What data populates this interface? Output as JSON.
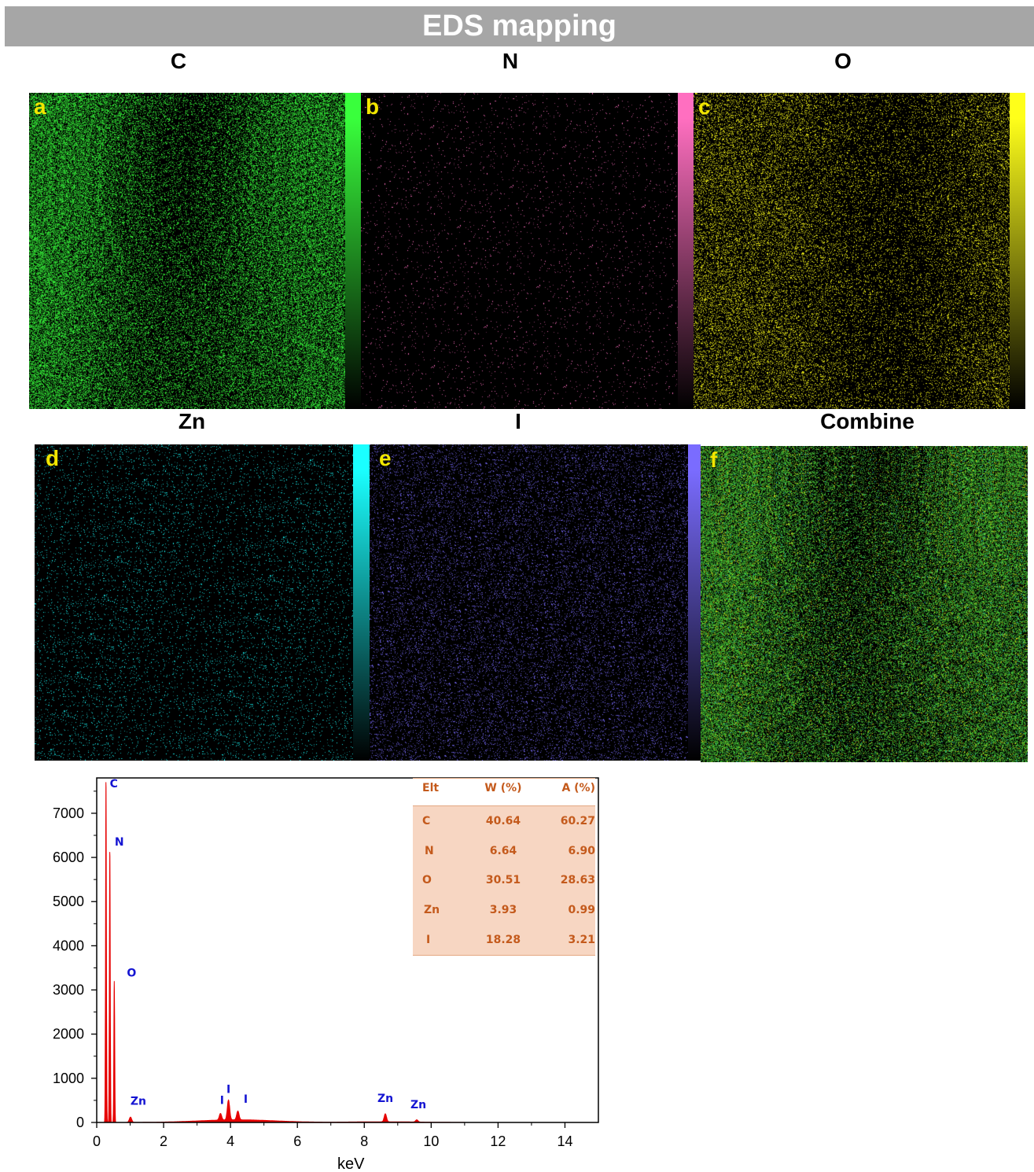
{
  "banner": "EDS mapping",
  "maps": [
    {
      "element": "C",
      "letter": "a",
      "color": "#39ff3c"
    },
    {
      "element": "N",
      "letter": "b",
      "color": "#ff6fc0"
    },
    {
      "element": "O",
      "letter": "c",
      "color": "#ffff1a"
    },
    {
      "element": "Zn",
      "letter": "d",
      "color": "#1affff"
    },
    {
      "element": "I",
      "letter": "e",
      "color": "#7a6cff"
    },
    {
      "element": "Combine",
      "letter": "f",
      "color": "#4bd13a"
    }
  ],
  "table": {
    "headers": [
      "Elt",
      "W (%)",
      "A (%)"
    ],
    "rows": [
      [
        "C",
        "40.64",
        "60.27"
      ],
      [
        "N",
        "6.64",
        "6.90"
      ],
      [
        "O",
        "30.51",
        "28.63"
      ],
      [
        "Zn",
        "3.93",
        "0.99"
      ],
      [
        "I",
        "18.28",
        "3.21"
      ]
    ]
  },
  "chart_data": {
    "type": "line",
    "xlabel": "keV",
    "ylabel": "",
    "xlim": [
      0,
      15
    ],
    "ylim": [
      0,
      7800
    ],
    "xticks": [
      0,
      2,
      4,
      6,
      8,
      10,
      12,
      14
    ],
    "yticks": [
      0,
      1000,
      2000,
      3000,
      4000,
      5000,
      6000,
      7000
    ],
    "series_color": "#e60000",
    "peaks": [
      {
        "label": "C",
        "x": 0.277,
        "y": 7800
      },
      {
        "label": "N",
        "x": 0.392,
        "y": 6200
      },
      {
        "label": "O",
        "x": 0.525,
        "y": 3200
      },
      {
        "label": "Zn",
        "x": 1.01,
        "y": 120
      },
      {
        "label": "I",
        "x": 3.7,
        "y": 150
      },
      {
        "label": "I",
        "x": 3.94,
        "y": 450
      },
      {
        "label": "I",
        "x": 4.22,
        "y": 200
      },
      {
        "label": "Zn",
        "x": 8.63,
        "y": 180
      },
      {
        "label": "Zn",
        "x": 9.57,
        "y": 50
      }
    ],
    "peak_label_color": "#1414d2"
  }
}
